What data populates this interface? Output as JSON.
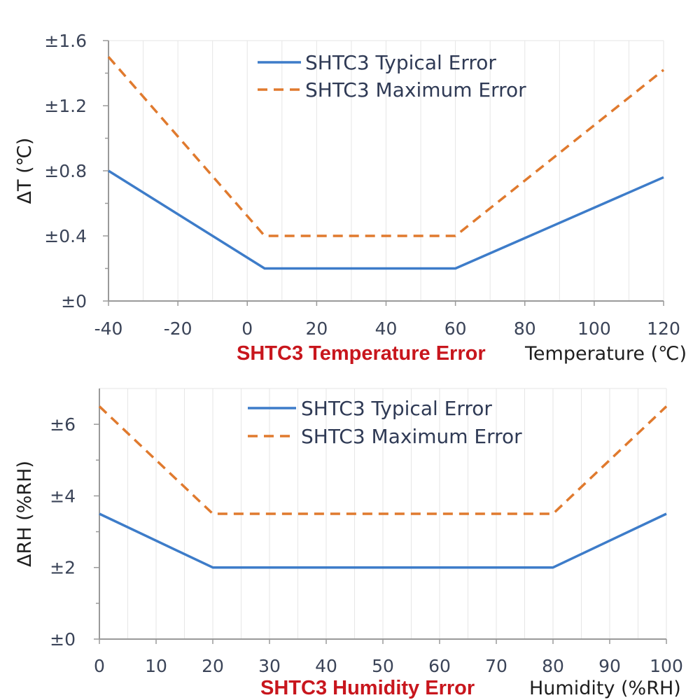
{
  "chart_data": [
    {
      "type": "line",
      "title": "SHTC3 Temperature Error",
      "xlabel": "Temperature (℃)",
      "ylabel": "ΔT (℃)",
      "xlim": [
        -40,
        120
      ],
      "ylim": [
        0,
        1.6
      ],
      "xticks": [
        "-40",
        "-20",
        "0",
        "20",
        "40",
        "60",
        "80",
        "100",
        "120"
      ],
      "xtick_values": [
        -40,
        -20,
        0,
        20,
        40,
        60,
        80,
        100,
        120
      ],
      "yticks": [
        "±0",
        "±0.4",
        "±0.8",
        "±1.2",
        "±1.6"
      ],
      "ytick_values": [
        0,
        0.4,
        0.8,
        1.2,
        1.6
      ],
      "grid": true,
      "legend_position": "top-center",
      "series": [
        {
          "name": "SHTC3 Typical Error",
          "style": "solid",
          "color": "#3d7cc9",
          "points": [
            [
              -40,
              0.8
            ],
            [
              5,
              0.2
            ],
            [
              60,
              0.2
            ],
            [
              120,
              0.76
            ]
          ]
        },
        {
          "name": "SHTC3 Maximum Error",
          "style": "dashed",
          "color": "#e07a2e",
          "points": [
            [
              -40,
              1.5
            ],
            [
              5,
              0.4
            ],
            [
              60,
              0.4
            ],
            [
              120,
              1.42
            ]
          ]
        }
      ]
    },
    {
      "type": "line",
      "title": "SHTC3 Humidity Error",
      "xlabel": "Humidity (%RH)",
      "ylabel": "ΔRH (%RH)",
      "xlim": [
        0,
        100
      ],
      "ylim": [
        0,
        7
      ],
      "xticks": [
        "0",
        "10",
        "20",
        "30",
        "40",
        "50",
        "60",
        "70",
        "80",
        "90",
        "100"
      ],
      "xtick_values": [
        0,
        10,
        20,
        30,
        40,
        50,
        60,
        70,
        80,
        90,
        100
      ],
      "yticks": [
        "±0",
        "±2",
        "±4",
        "±6"
      ],
      "ytick_values": [
        0,
        2,
        4,
        6
      ],
      "grid": true,
      "legend_position": "top-center",
      "series": [
        {
          "name": "SHTC3 Typical Error",
          "style": "solid",
          "color": "#3d7cc9",
          "points": [
            [
              0,
              3.5
            ],
            [
              20,
              2
            ],
            [
              80,
              2
            ],
            [
              100,
              3.5
            ]
          ]
        },
        {
          "name": "SHTC3 Maximum Error",
          "style": "dashed",
          "color": "#e07a2e",
          "points": [
            [
              0,
              6.5
            ],
            [
              20,
              3.5
            ],
            [
              80,
              3.5
            ],
            [
              100,
              6.5
            ]
          ]
        }
      ]
    }
  ]
}
